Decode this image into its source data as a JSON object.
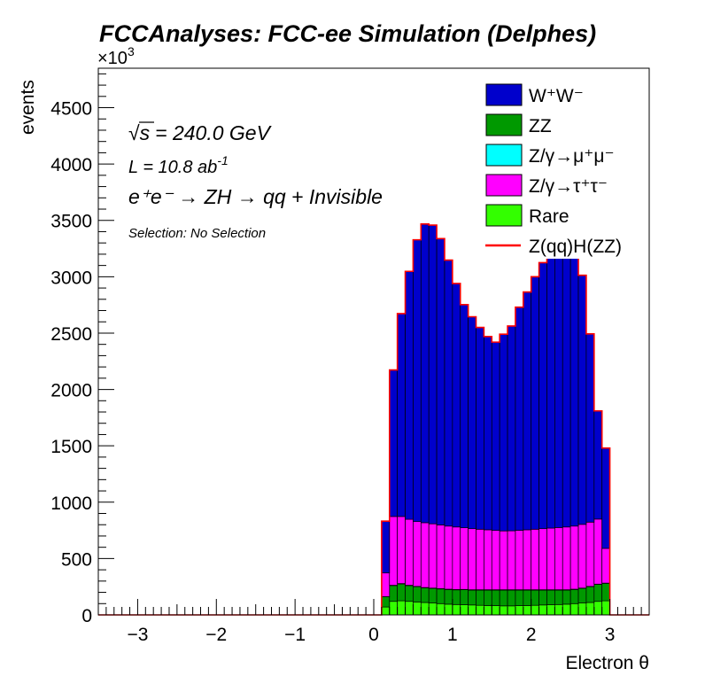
{
  "chart_data": {
    "type": "stacked-histogram",
    "title": "FCCAnalyses: FCC-ee Simulation (Delphes)",
    "xlabel": "Electron θ",
    "ylabel": "events",
    "y_multiplier": "×10",
    "y_multiplier_exp": "3",
    "xlim": [
      -3.5,
      3.5
    ],
    "ylim": [
      0,
      4850
    ],
    "x_ticks": [
      -3,
      -2,
      -1,
      0,
      1,
      2,
      3
    ],
    "x_tick_labels": [
      "−3",
      "−2",
      "−1",
      "0",
      "1",
      "2",
      "3"
    ],
    "y_ticks": [
      0,
      500,
      1000,
      1500,
      2000,
      2500,
      3000,
      3500,
      4000,
      4500
    ],
    "y_tick_labels": [
      "0",
      "500",
      "1000",
      "1500",
      "2000",
      "2500",
      "3000",
      "3500",
      "4000",
      "4500"
    ],
    "bin_edges": [
      0.1,
      0.2,
      0.3,
      0.4,
      0.5,
      0.6,
      0.7,
      0.8,
      0.9,
      1.0,
      1.1,
      1.2,
      1.3,
      1.4,
      1.5,
      1.6,
      1.7,
      1.8,
      1.9,
      2.0,
      2.1,
      2.2,
      2.3,
      2.4,
      2.5,
      2.6,
      2.7,
      2.8,
      2.9,
      3.0
    ],
    "series": [
      {
        "name": "Rare",
        "color": "#33ff00",
        "values": [
          70,
          120,
          125,
          120,
          115,
          110,
          105,
          100,
          95,
          92,
          90,
          88,
          85,
          83,
          82,
          80,
          80,
          82,
          83,
          85,
          88,
          90,
          92,
          95,
          100,
          105,
          110,
          120,
          125
        ]
      },
      {
        "name": "ZZ",
        "color": "#009900",
        "values": [
          90,
          140,
          150,
          140,
          135,
          130,
          130,
          130,
          130,
          130,
          133,
          132,
          135,
          137,
          138,
          140,
          140,
          138,
          137,
          135,
          132,
          130,
          128,
          125,
          125,
          130,
          140,
          150,
          155
        ]
      },
      {
        "name": "Z/γ→μ⁺μ⁻",
        "color": "#00ffff",
        "values": [
          2,
          3,
          3,
          3,
          3,
          3,
          3,
          3,
          3,
          3,
          3,
          3,
          3,
          3,
          3,
          3,
          3,
          3,
          3,
          3,
          3,
          3,
          3,
          3,
          3,
          3,
          3,
          3,
          2
        ]
      },
      {
        "name": "Z/γ→τ⁺τ⁻",
        "color": "#ff00ff",
        "values": [
          210,
          610,
          595,
          585,
          575,
          575,
          570,
          565,
          560,
          555,
          547,
          542,
          537,
          532,
          527,
          522,
          523,
          527,
          532,
          537,
          542,
          547,
          552,
          557,
          560,
          565,
          570,
          577,
          308
        ]
      },
      {
        "name": "W⁺W⁻",
        "color": "#0000cc",
        "values": [
          460,
          1300,
          1800,
          2200,
          2500,
          2650,
          2650,
          2540,
          2360,
          2160,
          1980,
          1880,
          1790,
          1715,
          1670,
          1745,
          1817,
          1980,
          2110,
          2240,
          2360,
          2430,
          2490,
          2540,
          2430,
          2210,
          1670,
          960,
          890
        ]
      },
      {
        "name": "Z(qq)H(ZZ)",
        "color": "#ff0000",
        "values": [
          0,
          0,
          0,
          0,
          0,
          0,
          0,
          0,
          0,
          0,
          0,
          0,
          0,
          0,
          0,
          0,
          0,
          0,
          0,
          0,
          0,
          0,
          0,
          0,
          0,
          0,
          0,
          0,
          0
        ]
      }
    ],
    "annotations": {
      "sqrt_s_symbol": "√",
      "sqrt_s_var": "s",
      "sqrt_s_value": "= 240.0 GeV",
      "lumi": "L = 10.8 ab",
      "lumi_exp": "-1",
      "process": "e⁺e⁻ → ZH → qq + Invisible",
      "selection": "Selection: No Selection"
    },
    "legend": {
      "position": "top-right",
      "entries": [
        {
          "label": "W⁺W⁻",
          "color": "#0000cc",
          "style": "fill"
        },
        {
          "label": "ZZ",
          "color": "#009900",
          "style": "fill"
        },
        {
          "label": "Z/γ→μ⁺μ⁻",
          "color": "#00ffff",
          "style": "fill"
        },
        {
          "label": "Z/γ→τ⁺τ⁻",
          "color": "#ff00ff",
          "style": "fill"
        },
        {
          "label": "Rare",
          "color": "#33ff00",
          "style": "fill"
        },
        {
          "label": "Z(qq)H(ZZ)",
          "color": "#ff0000",
          "style": "line"
        }
      ]
    }
  }
}
